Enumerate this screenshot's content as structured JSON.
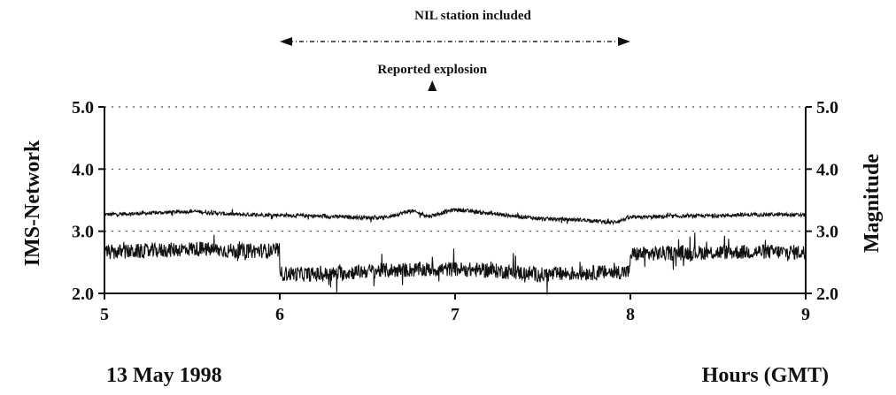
{
  "chart_data": {
    "type": "line",
    "title": "",
    "xlabel": "Hours (GMT)",
    "ylabel_left": "IMS-Network",
    "ylabel_right": "Magnitude",
    "date_label": "13 May 1998",
    "xlim": [
      5,
      9
    ],
    "ylim": [
      2.0,
      5.0
    ],
    "x_ticks": [
      5,
      6,
      7,
      8,
      9
    ],
    "x_tick_labels": [
      "5",
      "6",
      "7",
      "8",
      "9"
    ],
    "y_ticks": [
      2.0,
      3.0,
      4.0,
      5.0
    ],
    "y_tick_labels": [
      "2.0",
      "3.0",
      "4.0",
      "5.0"
    ],
    "gridlines_dotted": true,
    "annotations": {
      "nil_range": {
        "label": "NIL station included",
        "x_start": 6.0,
        "x_end": 8.0
      },
      "explosion": {
        "label": "Reported explosion",
        "x": 6.87
      }
    },
    "series": [
      {
        "x": [
          5.0,
          5.25,
          5.5,
          5.75,
          6.0,
          6.25,
          6.5,
          6.6,
          6.75,
          6.85,
          7.0,
          7.25,
          7.5,
          7.75,
          7.9,
          8.0,
          8.25,
          8.5,
          8.75,
          9.0
        ],
        "y": [
          3.27,
          3.29,
          3.32,
          3.27,
          3.26,
          3.24,
          3.22,
          3.22,
          3.33,
          3.24,
          3.35,
          3.27,
          3.2,
          3.18,
          3.14,
          3.22,
          3.24,
          3.25,
          3.27,
          3.26
        ],
        "noise": 0.03
      },
      {
        "x": [
          5.0,
          5.25,
          5.5,
          5.75,
          5.999,
          6.0,
          6.25,
          6.5,
          6.75,
          7.0,
          7.25,
          7.5,
          7.75,
          7.999,
          8.0,
          8.25,
          8.5,
          8.75,
          9.0
        ],
        "y": [
          2.66,
          2.68,
          2.72,
          2.68,
          2.69,
          2.32,
          2.3,
          2.36,
          2.38,
          2.39,
          2.36,
          2.3,
          2.33,
          2.35,
          2.63,
          2.65,
          2.66,
          2.67,
          2.66
        ],
        "noise": 0.12
      }
    ]
  }
}
